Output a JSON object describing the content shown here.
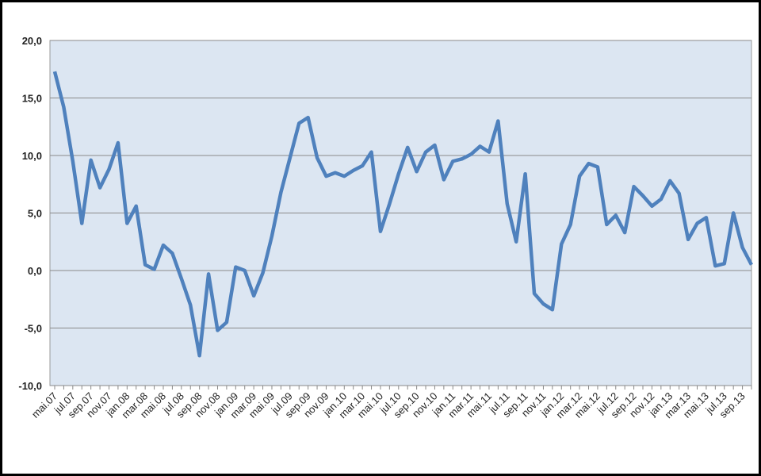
{
  "chart_data": {
    "type": "line",
    "categories": [
      "mai.07",
      null,
      "jul.07",
      null,
      "sep.07",
      null,
      "nov.07",
      null,
      "jan.08",
      null,
      "mar.08",
      null,
      "mai.08",
      null,
      "jul.08",
      null,
      "sep.08",
      null,
      "nov.08",
      null,
      "jan.09",
      null,
      "mar.09",
      null,
      "mai.09",
      null,
      "jul.09",
      null,
      "sep.09",
      null,
      "nov.09",
      null,
      "jan.10",
      null,
      "mar.10",
      null,
      "mai.10",
      null,
      "jul.10",
      null,
      "sep.10",
      null,
      "nov.10",
      null,
      "jan.11",
      null,
      "mar.11",
      null,
      "mai.11",
      null,
      "jul.11",
      null,
      "sep.11",
      null,
      "nov.11",
      null,
      "jan.12",
      null,
      "mar.12",
      null,
      "mai.12",
      null,
      "jul.12",
      null,
      "sep.12",
      null,
      "nov.12",
      null,
      "jan.13",
      null,
      "mar.13",
      null,
      "mai.13",
      null,
      "jul.13",
      null,
      "sep.13",
      null
    ],
    "series": [
      {
        "color": "#4f81bd",
        "values": [
          17.3,
          14.2,
          9.5,
          4.1,
          9.6,
          7.2,
          8.8,
          11.1,
          4.1,
          5.6,
          0.5,
          0.1,
          2.2,
          1.5,
          -0.7,
          -3.0,
          -7.4,
          -0.3,
          -5.2,
          -4.5,
          0.3,
          0.0,
          -2.2,
          -0.2,
          3.0,
          6.8,
          9.8,
          12.8,
          13.3,
          9.8,
          8.2,
          8.5,
          8.2,
          8.7,
          9.1,
          10.3,
          3.4,
          5.8,
          8.4,
          10.7,
          8.6,
          10.3,
          10.9,
          7.9,
          9.5,
          9.7,
          10.1,
          10.8,
          10.3,
          13.0,
          5.8,
          2.5,
          8.4,
          -2.0,
          -2.9,
          -3.4,
          2.3,
          4.0,
          8.2,
          9.3,
          9.0,
          4.0,
          4.8,
          3.3,
          7.3,
          6.5,
          5.6,
          6.2,
          7.8,
          6.7,
          2.7,
          4.1,
          4.6,
          0.4,
          0.6,
          5.0,
          2.0,
          0.5
        ]
      }
    ],
    "ylim": [
      -10,
      20
    ],
    "yticks": [
      {
        "value": -10,
        "label": "-10,0"
      },
      {
        "value": -5,
        "label": "-5,0"
      },
      {
        "value": 0,
        "label": "0,0"
      },
      {
        "value": 5,
        "label": "5,0"
      },
      {
        "value": 10,
        "label": "10,0"
      },
      {
        "value": 15,
        "label": "15,0"
      },
      {
        "value": 20,
        "label": "20,0"
      }
    ],
    "grid": true
  }
}
